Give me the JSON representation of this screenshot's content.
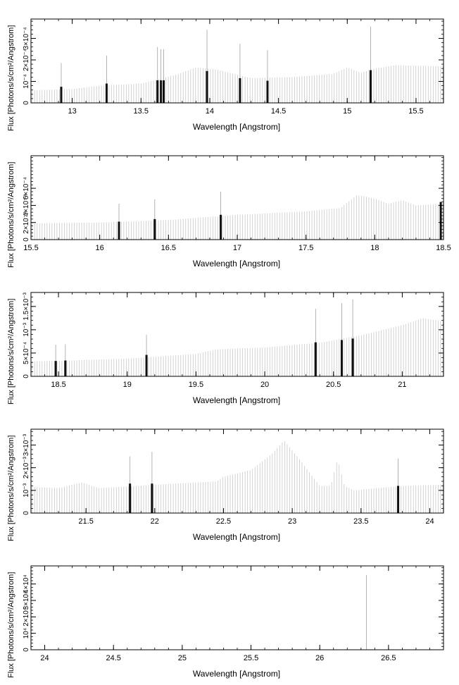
{
  "chart_data": [
    {
      "type": "bar",
      "xlabel": "Wavelength [Angstrom]",
      "ylabel": "Flux [Photons/s/cm²/Angstrom]",
      "xlim": [
        12.7,
        15.7
      ],
      "ylim": [
        0,
        0.00039
      ],
      "xticks": [
        13,
        13.5,
        14,
        14.5,
        15,
        15.5
      ],
      "xtick_labels": [
        "13",
        "13.5",
        "14",
        "14.5",
        "15",
        "15.5"
      ],
      "yticks": [
        0,
        0.0001,
        0.0002,
        0.0003
      ],
      "ytick_labels": [
        "0",
        "10⁻⁴",
        "2×10⁻⁴",
        "3×10⁻⁴"
      ],
      "continuum": [
        [
          12.7,
          5.8e-05
        ],
        [
          13.0,
          6.5e-05
        ],
        [
          13.2,
          8e-05
        ],
        [
          13.5,
          9e-05
        ],
        [
          13.75,
          0.00013
        ],
        [
          13.9,
          0.000165
        ],
        [
          14.05,
          0.000155
        ],
        [
          14.3,
          0.000115
        ],
        [
          14.6,
          0.00012
        ],
        [
          14.9,
          0.000135
        ],
        [
          15.0,
          0.000165
        ],
        [
          15.1,
          0.00014
        ],
        [
          15.2,
          0.00016
        ],
        [
          15.35,
          0.000175
        ],
        [
          15.7,
          0.00017
        ]
      ],
      "lines": [
        {
          "x": 12.92,
          "bar": 7.5e-05,
          "peak": 0.000185
        },
        {
          "x": 13.25,
          "bar": 9e-05,
          "peak": 0.00022
        },
        {
          "x": 13.62,
          "bar": 0.000105,
          "peak": 0.00026
        },
        {
          "x": 13.645,
          "bar": 0.000105,
          "peak": 0.00025
        },
        {
          "x": 13.665,
          "bar": 0.000105,
          "peak": 0.00025
        },
        {
          "x": 13.98,
          "bar": 0.000148,
          "peak": 0.00034
        },
        {
          "x": 14.22,
          "bar": 0.000115,
          "peak": 0.000275
        },
        {
          "x": 14.42,
          "bar": 0.000103,
          "peak": 0.000245
        },
        {
          "x": 15.17,
          "bar": 0.000152,
          "peak": 0.000355
        }
      ]
    },
    {
      "type": "bar",
      "xlabel": "Wavelength [Angstrom]",
      "ylabel": "Flux [Photons/s/cm²/Angstrom]",
      "xlim": [
        15.5,
        18.5
      ],
      "ylim": [
        0,
        0.00098
      ],
      "xticks": [
        15.5,
        16,
        16.5,
        17,
        17.5,
        18,
        18.5
      ],
      "xtick_labels": [
        "15.5",
        "16",
        "16.5",
        "17",
        "17.5",
        "18",
        "18.5"
      ],
      "yticks": [
        0,
        0.0002,
        0.0004,
        0.0006
      ],
      "ytick_labels": [
        "0",
        "2×10⁻⁴",
        "4×10⁻⁴",
        "6×10⁻⁴"
      ],
      "continuum": [
        [
          15.5,
          0.00019
        ],
        [
          16.0,
          0.0002
        ],
        [
          16.5,
          0.00023
        ],
        [
          17.0,
          0.00029
        ],
        [
          17.5,
          0.00033
        ],
        [
          17.75,
          0.00037
        ],
        [
          17.87,
          0.00052
        ],
        [
          18.0,
          0.00048
        ],
        [
          18.1,
          0.00042
        ],
        [
          18.2,
          0.00046
        ],
        [
          18.3,
          0.0004
        ],
        [
          18.5,
          0.00042
        ]
      ],
      "lines": [
        {
          "x": 16.14,
          "bar": 0.00021,
          "peak": 0.00042
        },
        {
          "x": 16.4,
          "bar": 0.00024,
          "peak": 0.00047
        },
        {
          "x": 16.88,
          "bar": 0.00029,
          "peak": 0.00056
        },
        {
          "x": 18.48,
          "bar": 0.00044,
          "peak": 0.00044
        }
      ]
    },
    {
      "type": "bar",
      "xlabel": "Wavelength [Angstrom]",
      "ylabel": "Flux [Photons/s/cm²/Angstrom]",
      "xlim": [
        18.3,
        21.3
      ],
      "ylim": [
        0,
        0.0018
      ],
      "xticks": [
        18.5,
        19,
        19.5,
        20,
        20.5,
        21
      ],
      "xtick_labels": [
        "18.5",
        "19",
        "19.5",
        "20",
        "20.5",
        "21"
      ],
      "yticks": [
        0,
        0.0005,
        0.001,
        0.0015
      ],
      "ytick_labels": [
        "0",
        "5×10⁻⁴",
        "10⁻³",
        "1.5×10⁻³"
      ],
      "continuum": [
        [
          18.3,
          0.00032
        ],
        [
          18.7,
          0.00035
        ],
        [
          19.0,
          0.00038
        ],
        [
          19.5,
          0.00048
        ],
        [
          19.65,
          0.00058
        ],
        [
          20.0,
          0.00062
        ],
        [
          20.4,
          0.00072
        ],
        [
          20.7,
          0.00088
        ],
        [
          21.0,
          0.0011
        ],
        [
          21.15,
          0.00125
        ],
        [
          21.3,
          0.00118
        ]
      ],
      "lines": [
        {
          "x": 18.48,
          "bar": 0.00033,
          "peak": 0.00068
        },
        {
          "x": 18.55,
          "bar": 0.00034,
          "peak": 0.00069
        },
        {
          "x": 19.14,
          "bar": 0.00046,
          "peak": 0.00089
        },
        {
          "x": 20.37,
          "bar": 0.00073,
          "peak": 0.00145
        },
        {
          "x": 20.56,
          "bar": 0.00078,
          "peak": 0.00157
        },
        {
          "x": 20.64,
          "bar": 0.00081,
          "peak": 0.00165
        }
      ]
    },
    {
      "type": "bar",
      "xlabel": "Wavelength [Angstrom]",
      "ylabel": "Flux [Photons/s/cm²/Angstrom]",
      "xlim": [
        21.1,
        24.1
      ],
      "ylim": [
        0,
        0.0037
      ],
      "xticks": [
        21.5,
        22,
        22.5,
        23,
        23.5,
        24
      ],
      "xtick_labels": [
        "21.5",
        "22",
        "22.5",
        "23",
        "23.5",
        "24"
      ],
      "yticks": [
        0,
        0.001,
        0.002,
        0.003
      ],
      "ytick_labels": [
        "0",
        "10⁻³",
        "2×10⁻³",
        "3×10⁻³"
      ],
      "continuum": [
        [
          21.1,
          0.00115
        ],
        [
          21.3,
          0.0011
        ],
        [
          21.47,
          0.00135
        ],
        [
          21.6,
          0.0011
        ],
        [
          22.0,
          0.00125
        ],
        [
          22.45,
          0.0014
        ],
        [
          22.5,
          0.0016
        ],
        [
          22.7,
          0.0019
        ],
        [
          22.85,
          0.0026
        ],
        [
          22.94,
          0.0032
        ],
        [
          23.05,
          0.0024
        ],
        [
          23.2,
          0.0012
        ],
        [
          23.28,
          0.0012
        ],
        [
          23.33,
          0.0024
        ],
        [
          23.38,
          0.0012
        ],
        [
          23.45,
          0.001
        ],
        [
          23.8,
          0.0012
        ],
        [
          24.1,
          0.00125
        ]
      ],
      "lines": [
        {
          "x": 21.82,
          "bar": 0.0013,
          "peak": 0.0025
        },
        {
          "x": 21.98,
          "bar": 0.0013,
          "peak": 0.0027
        },
        {
          "x": 23.77,
          "bar": 0.0012,
          "peak": 0.0024
        }
      ]
    },
    {
      "type": "bar",
      "xlabel": "Wavelength [Angstrom]",
      "ylabel": "Flux [Photons/s/cm²/Angstrom]",
      "xlim": [
        23.9,
        26.9
      ],
      "ylim": [
        0,
        51000
      ],
      "xticks": [
        24,
        24.5,
        25,
        25.5,
        26,
        26.5
      ],
      "xtick_labels": [
        "24",
        "24.5",
        "25",
        "25.5",
        "26",
        "26.5"
      ],
      "yticks": [
        0,
        10000,
        20000,
        30000,
        40000
      ],
      "ytick_labels": [
        "0",
        "10⁴",
        "2×10⁴",
        "3×10⁴",
        "4×10⁴"
      ],
      "continuum": [
        [
          23.9,
          0
        ],
        [
          26.9,
          0
        ]
      ],
      "lines": [
        {
          "x": 26.34,
          "bar": 0,
          "peak": 45500
        }
      ]
    }
  ]
}
